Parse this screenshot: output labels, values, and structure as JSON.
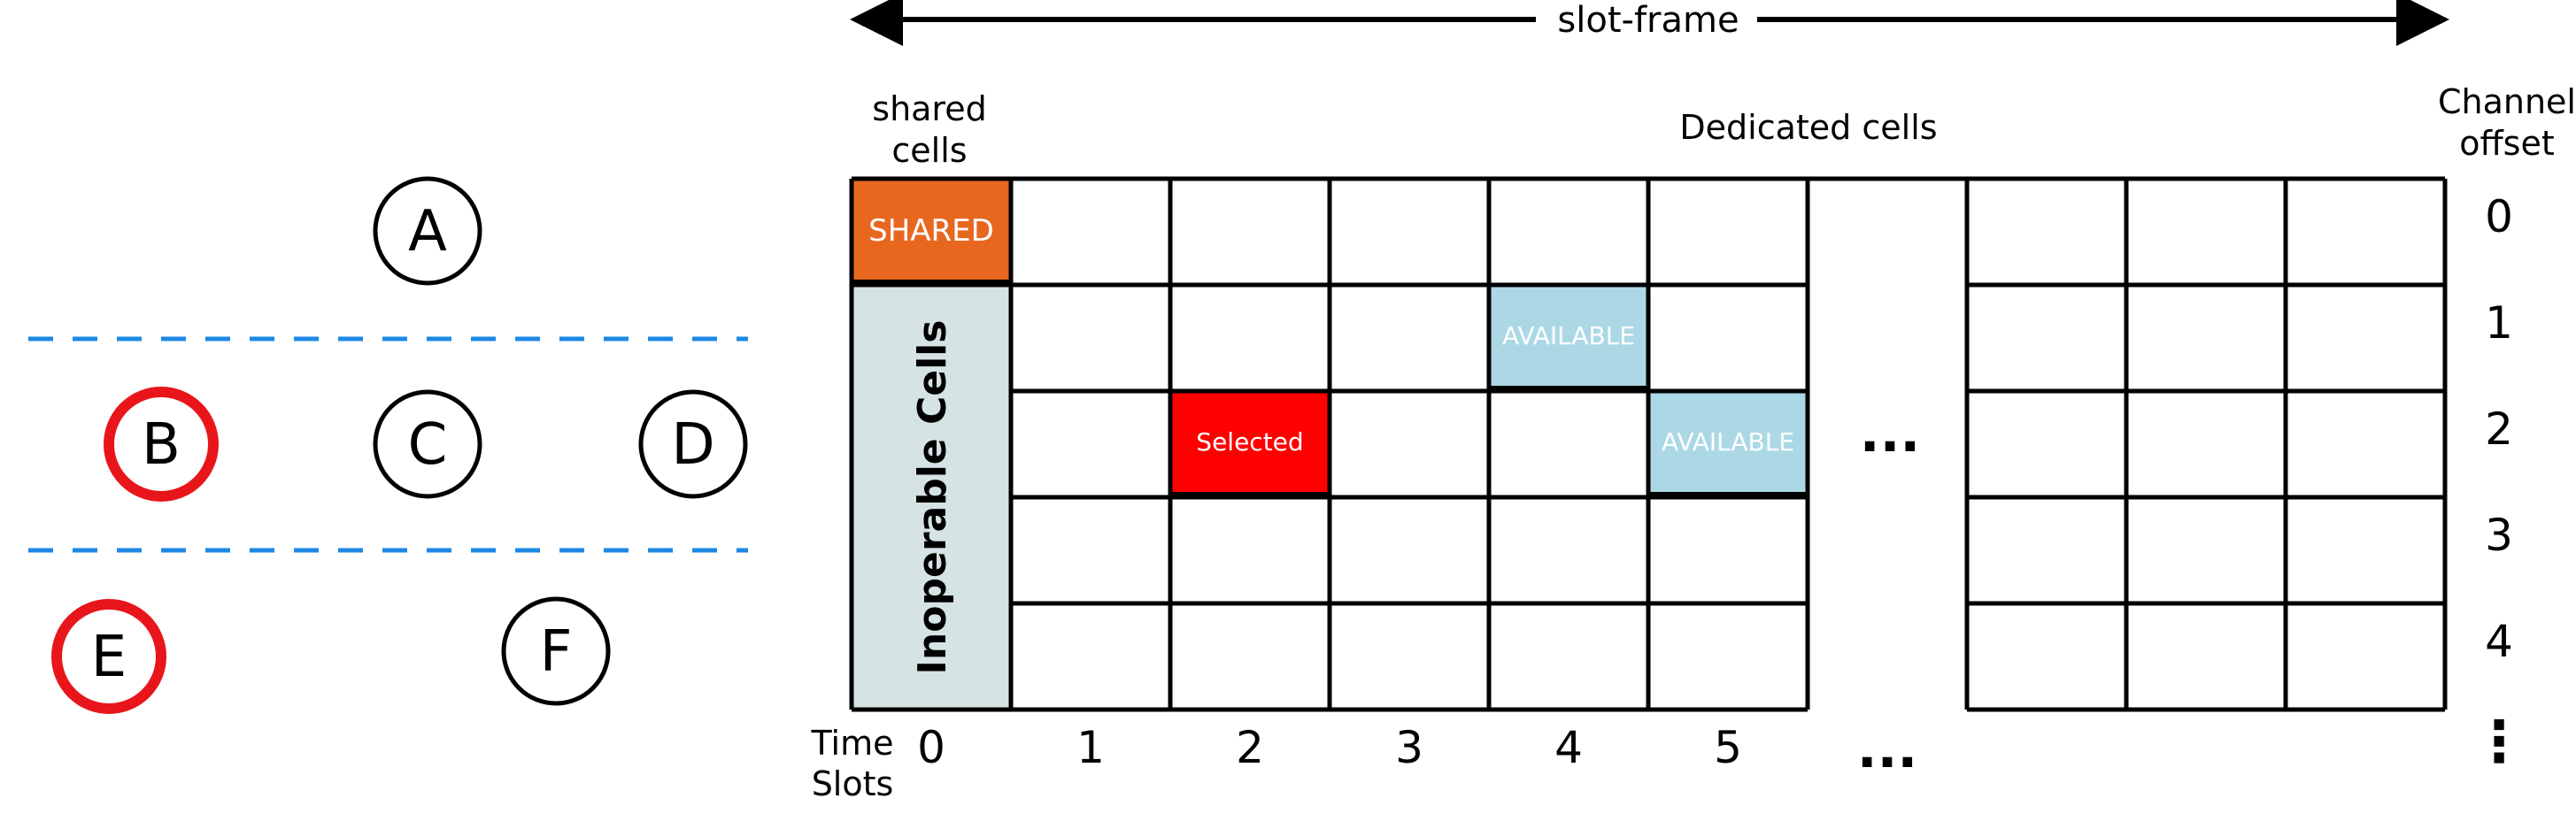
{
  "topology": {
    "nodes": [
      {
        "label": "A",
        "highlight": false
      },
      {
        "label": "B",
        "highlight": true
      },
      {
        "label": "C",
        "highlight": false
      },
      {
        "label": "D",
        "highlight": false
      },
      {
        "label": "E",
        "highlight": true
      },
      {
        "label": "F",
        "highlight": false
      }
    ],
    "highlight_color": "#e8161b",
    "divider_color": "#1e88e5"
  },
  "header": {
    "slot_frame": "slot-frame",
    "shared_cells_line1": "shared",
    "shared_cells_line2": "cells",
    "dedicated_cells": "Dedicated cells",
    "channel_offset_line1": "Channel",
    "channel_offset_line2": "offset",
    "time_slots_line1": "Time",
    "time_slots_line2": "Slots"
  },
  "grid": {
    "column_labels": [
      "0",
      "1",
      "2",
      "3",
      "4",
      "5"
    ],
    "row_labels": [
      "0",
      "1",
      "2",
      "3",
      "4"
    ],
    "ellipsis": "...",
    "vertical_ellipsis": "⋮",
    "shared_cell": {
      "label": "SHARED",
      "color": "#e8671f"
    },
    "inoperable": {
      "label": "Inoperable Cells",
      "color": "#d5e3e4"
    },
    "selected": {
      "label": "Selected",
      "color": "#fe0000",
      "column": 2,
      "row": 2
    },
    "available": [
      {
        "label": "AVAILABLE",
        "column": 4,
        "row": 1
      },
      {
        "label": "AVAILABLE",
        "column": 5,
        "row": 2
      }
    ],
    "available_color": "#acd8e6"
  }
}
